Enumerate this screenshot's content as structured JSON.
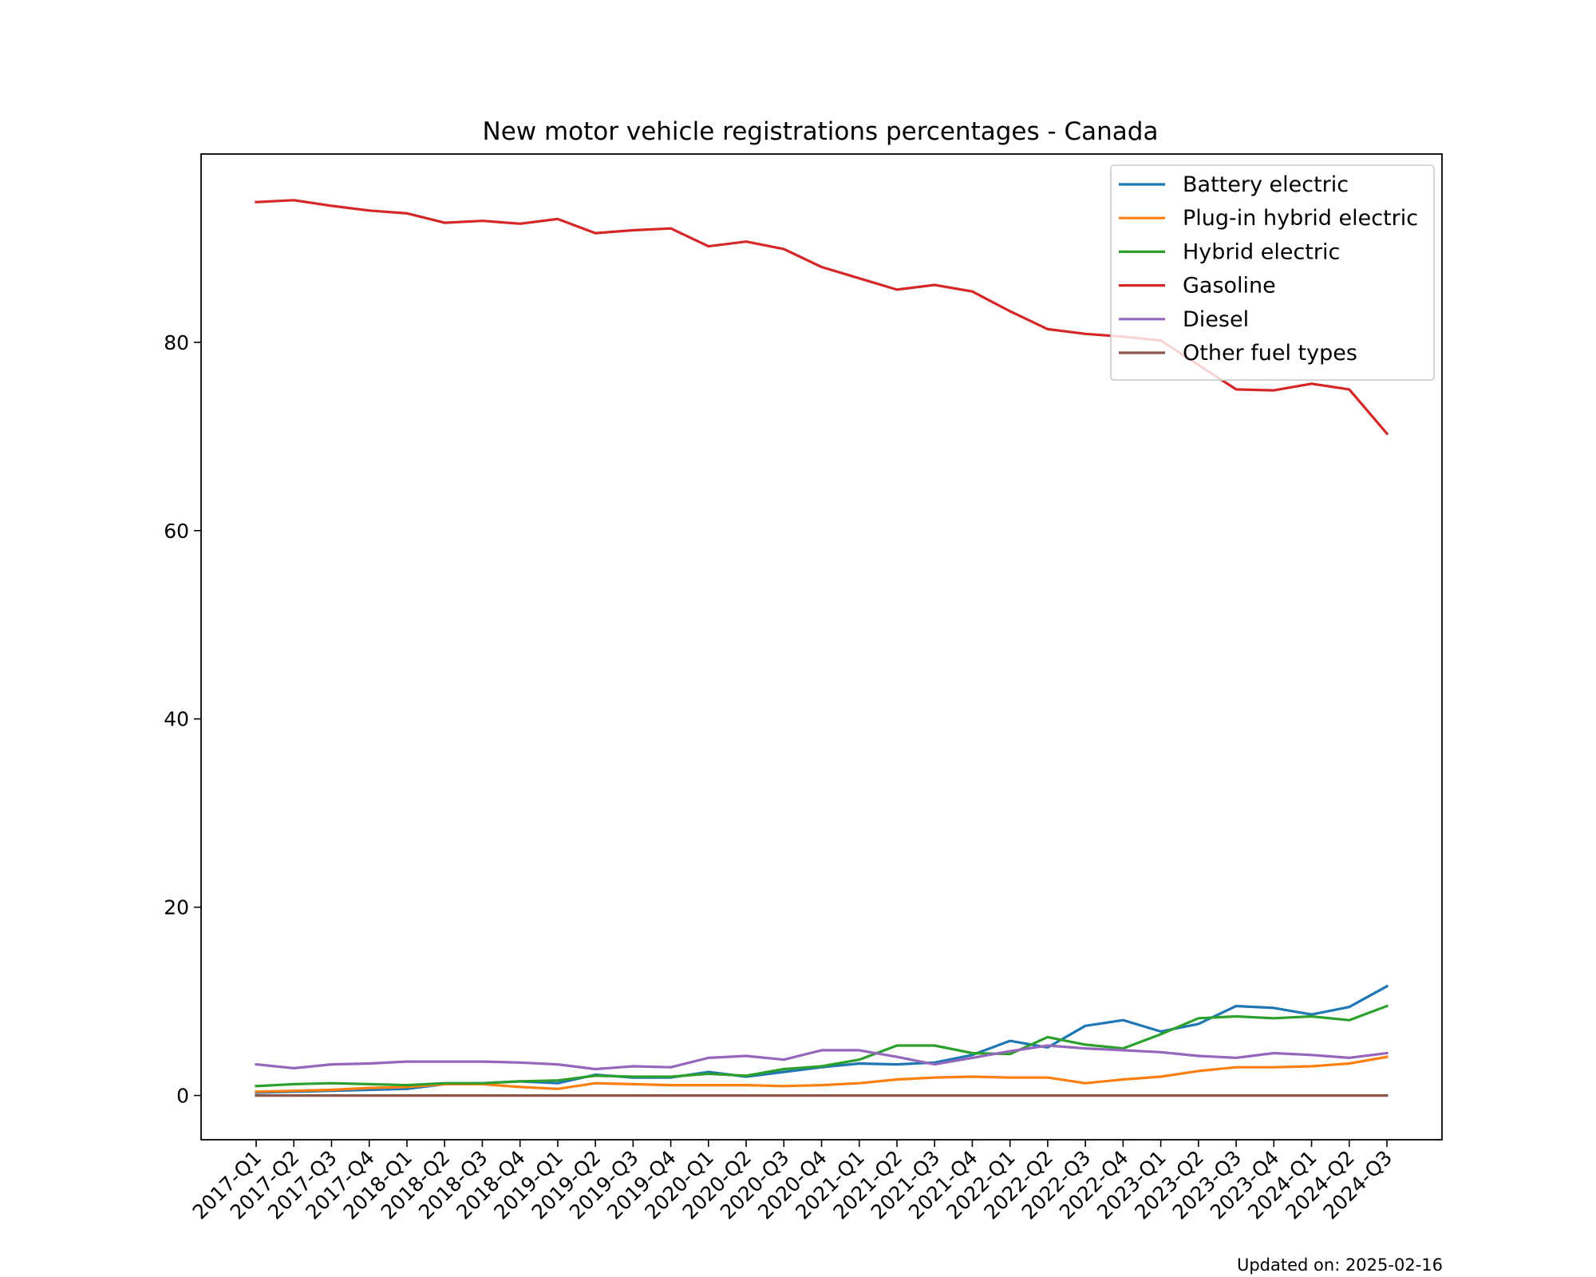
{
  "chart_data": {
    "type": "line",
    "title": "New motor vehicle registrations percentages - Canada",
    "xlabel": "",
    "ylabel": "",
    "ylim": [
      -4.7,
      100
    ],
    "yticks": [
      0,
      20,
      40,
      60,
      80
    ],
    "grid": false,
    "legend_position": "top-right",
    "categories": [
      "2017-Q1",
      "2017-Q2",
      "2017-Q3",
      "2017-Q4",
      "2018-Q1",
      "2018-Q2",
      "2018-Q3",
      "2018-Q4",
      "2019-Q1",
      "2019-Q2",
      "2019-Q3",
      "2019-Q4",
      "2020-Q1",
      "2020-Q2",
      "2020-Q3",
      "2020-Q4",
      "2021-Q1",
      "2021-Q2",
      "2021-Q3",
      "2021-Q4",
      "2022-Q1",
      "2022-Q2",
      "2022-Q3",
      "2022-Q4",
      "2023-Q1",
      "2023-Q2",
      "2023-Q3",
      "2023-Q4",
      "2024-Q1",
      "2024-Q2",
      "2024-Q3"
    ],
    "series": [
      {
        "name": "Battery electric",
        "color": "#1f77b4",
        "values": [
          0.3,
          0.4,
          0.5,
          0.6,
          0.7,
          1.2,
          1.3,
          1.5,
          1.3,
          2.2,
          1.9,
          1.9,
          2.5,
          2.0,
          2.5,
          3.0,
          3.4,
          3.3,
          3.5,
          4.3,
          5.8,
          5.1,
          7.4,
          8.0,
          6.8,
          7.6,
          9.5,
          9.3,
          8.6,
          9.4,
          11.6
        ]
      },
      {
        "name": "Plug-in hybrid electric",
        "color": "#ff7f0e",
        "values": [
          0.4,
          0.5,
          0.6,
          0.8,
          0.9,
          1.2,
          1.2,
          0.9,
          0.7,
          1.3,
          1.2,
          1.1,
          1.1,
          1.1,
          1.0,
          1.1,
          1.3,
          1.7,
          1.9,
          2.0,
          1.9,
          1.9,
          1.3,
          1.7,
          2.0,
          2.6,
          3.0,
          3.0,
          3.1,
          3.4,
          4.1
        ]
      },
      {
        "name": "Hybrid electric",
        "color": "#2ca02c",
        "values": [
          1.0,
          1.2,
          1.3,
          1.2,
          1.1,
          1.3,
          1.3,
          1.5,
          1.6,
          2.1,
          2.0,
          2.0,
          2.3,
          2.1,
          2.8,
          3.1,
          3.8,
          5.3,
          5.3,
          4.5,
          4.4,
          6.2,
          5.4,
          5.0,
          6.5,
          8.2,
          8.4,
          8.2,
          8.4,
          8.0,
          9.5
        ]
      },
      {
        "name": "Gasoline",
        "color": "#d62728",
        "values": [
          94.9,
          95.1,
          94.5,
          94.0,
          93.7,
          92.7,
          92.9,
          92.6,
          93.1,
          91.6,
          91.9,
          92.1,
          90.2,
          90.7,
          89.9,
          88.0,
          86.8,
          85.6,
          86.1,
          85.4,
          83.3,
          81.4,
          80.9,
          80.6,
          80.2,
          77.6,
          75.0,
          74.9,
          75.6,
          75.0,
          70.3
        ]
      },
      {
        "name": "Diesel",
        "color": "#9467bd",
        "values": [
          3.3,
          2.9,
          3.3,
          3.4,
          3.6,
          3.6,
          3.6,
          3.5,
          3.3,
          2.8,
          3.1,
          3.0,
          4.0,
          4.2,
          3.8,
          4.8,
          4.8,
          4.1,
          3.3,
          4.0,
          4.7,
          5.3,
          5.0,
          4.8,
          4.6,
          4.2,
          4.0,
          4.5,
          4.3,
          4.0,
          4.5
        ]
      },
      {
        "name": "Other fuel types",
        "color": "#8c564b",
        "values": [
          0,
          0,
          0,
          0,
          0,
          0,
          0,
          0,
          0,
          0,
          0,
          0,
          0,
          0,
          0,
          0,
          0,
          0,
          0,
          0,
          0,
          0,
          0,
          0,
          0,
          0,
          0,
          0,
          0,
          0,
          0
        ]
      }
    ],
    "footnote": "Updated on: 2025-02-16"
  }
}
